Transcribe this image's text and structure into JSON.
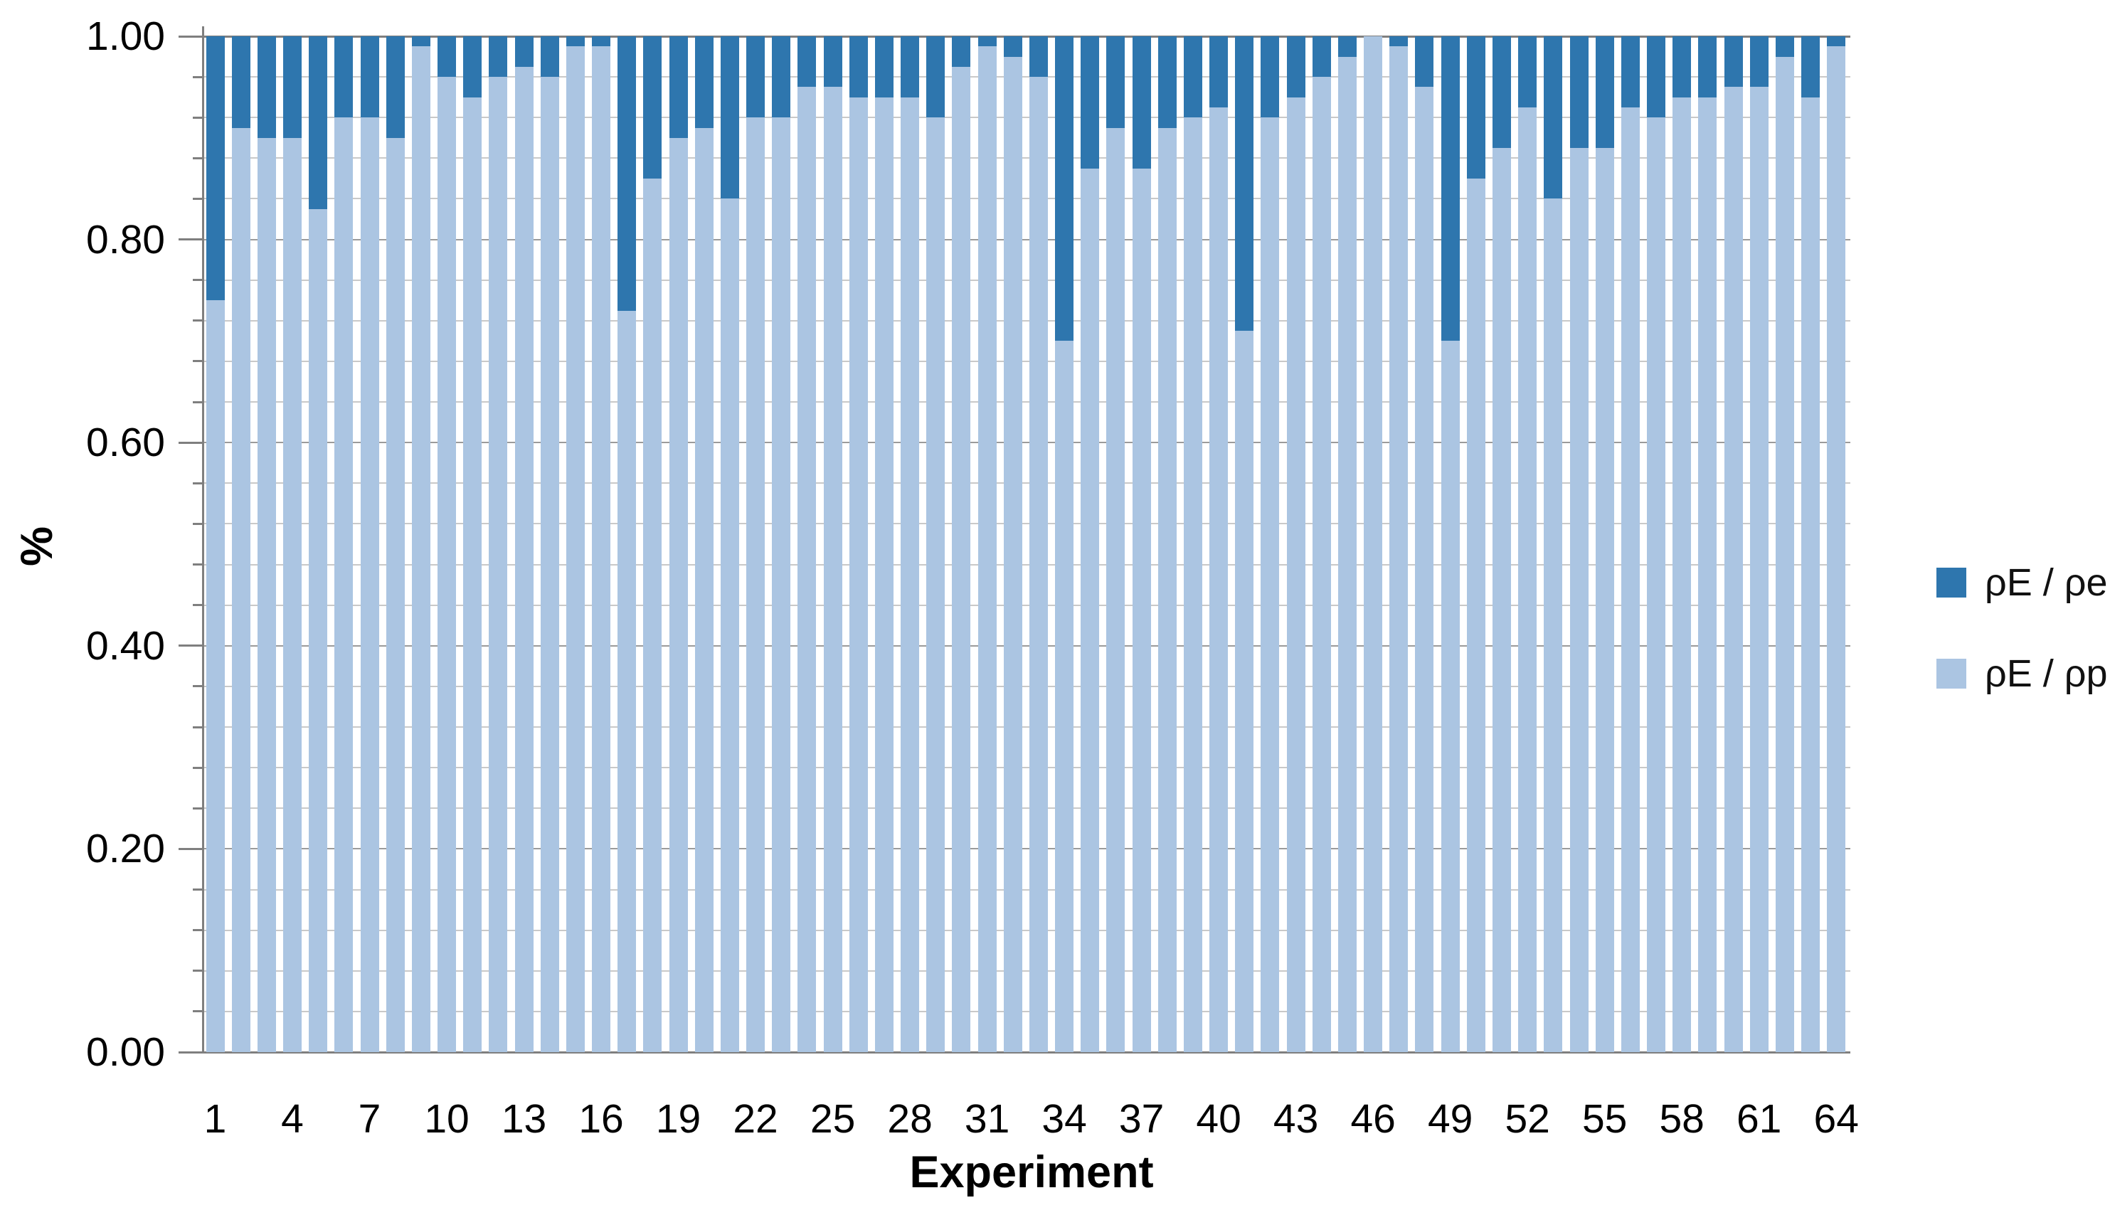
{
  "chart_data": {
    "type": "bar",
    "stacked": true,
    "stack_total": 1.0,
    "title": "",
    "xlabel": "Experiment",
    "ylabel": "%",
    "ylim": [
      0.0,
      1.0
    ],
    "ytick_interval": 0.2,
    "ytick_minor_interval": 0.04,
    "ytick_labels": [
      "0.00",
      "0.20",
      "0.40",
      "0.60",
      "0.80",
      "1.00"
    ],
    "xtick_step": 3,
    "xtick_labels": [
      "1",
      "4",
      "7",
      "10",
      "13",
      "16",
      "19",
      "22",
      "25",
      "28",
      "31",
      "34",
      "37",
      "40",
      "43",
      "46",
      "49",
      "52",
      "55",
      "58",
      "61",
      "64"
    ],
    "grid": true,
    "legend_position": "right",
    "categories": [
      1,
      2,
      3,
      4,
      5,
      6,
      7,
      8,
      9,
      10,
      11,
      12,
      13,
      14,
      15,
      16,
      17,
      18,
      19,
      20,
      21,
      22,
      23,
      24,
      25,
      26,
      27,
      28,
      29,
      30,
      31,
      32,
      33,
      34,
      35,
      36,
      37,
      38,
      39,
      40,
      41,
      42,
      43,
      44,
      45,
      46,
      47,
      48,
      49,
      50,
      51,
      52,
      53,
      54,
      55,
      56,
      57,
      58,
      59,
      60,
      61,
      62,
      63,
      64
    ],
    "series": [
      {
        "name": "ρE / ρe",
        "color": "#2E76AE",
        "position": "top",
        "values": [
          0.26,
          0.09,
          0.1,
          0.1,
          0.17,
          0.08,
          0.08,
          0.1,
          0.01,
          0.04,
          0.06,
          0.04,
          0.03,
          0.04,
          0.01,
          0.01,
          0.27,
          0.14,
          0.1,
          0.09,
          0.16,
          0.08,
          0.08,
          0.05,
          0.05,
          0.06,
          0.06,
          0.06,
          0.08,
          0.03,
          0.01,
          0.02,
          0.04,
          0.3,
          0.13,
          0.09,
          0.13,
          0.09,
          0.08,
          0.07,
          0.29,
          0.08,
          0.06,
          0.04,
          0.02,
          0.0,
          0.01,
          0.05,
          0.3,
          0.14,
          0.11,
          0.07,
          0.16,
          0.11,
          0.11,
          0.07,
          0.08,
          0.06,
          0.06,
          0.05,
          0.05,
          0.02,
          0.06,
          0.01
        ]
      },
      {
        "name": "ρE / ρp",
        "color": "#ABC5E2",
        "position": "bottom",
        "values": [
          0.74,
          0.91,
          0.9,
          0.9,
          0.83,
          0.92,
          0.92,
          0.9,
          0.99,
          0.96,
          0.94,
          0.96,
          0.97,
          0.96,
          0.99,
          0.99,
          0.73,
          0.86,
          0.9,
          0.91,
          0.84,
          0.92,
          0.92,
          0.95,
          0.95,
          0.94,
          0.94,
          0.94,
          0.92,
          0.97,
          0.99,
          0.98,
          0.96,
          0.7,
          0.87,
          0.91,
          0.87,
          0.91,
          0.92,
          0.93,
          0.71,
          0.92,
          0.94,
          0.96,
          0.98,
          1.0,
          0.99,
          0.95,
          0.7,
          0.86,
          0.89,
          0.93,
          0.84,
          0.89,
          0.89,
          0.93,
          0.92,
          0.94,
          0.94,
          0.95,
          0.95,
          0.98,
          0.94,
          0.99
        ]
      }
    ],
    "colors": {
      "grid_minor": "#c9c9c9",
      "grid_major": "#9b9b9b",
      "axis": "#7f7f7f",
      "text": "#000000"
    }
  },
  "legend": {
    "items": [
      {
        "label": "ρE / ρe",
        "color": "#2E76AE"
      },
      {
        "label": "ρE / ρp",
        "color": "#ABC5E2"
      }
    ]
  },
  "axes": {
    "x_title": "Experiment",
    "y_title": "%"
  }
}
